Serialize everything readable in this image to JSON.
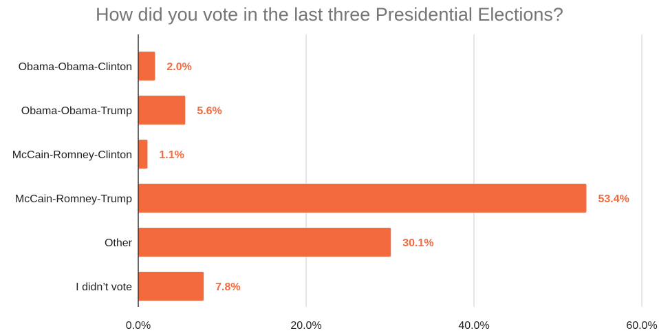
{
  "chart_data": {
    "type": "bar",
    "orientation": "horizontal",
    "title": "How did you vote in the last three Presidential Elections?",
    "categories": [
      "Obama-Obama-Clinton",
      "Obama-Obama-Trump",
      "McCain-Romney-Clinton",
      "McCain-Romney-Trump",
      "Other",
      "I didn’t vote"
    ],
    "values": [
      2.0,
      5.6,
      1.1,
      53.4,
      30.1,
      7.8
    ],
    "data_labels": [
      "2.0%",
      "5.6%",
      "1.1%",
      "53.4%",
      "30.1%",
      "7.8%"
    ],
    "xlim": [
      0,
      60
    ],
    "x_ticks": [
      0,
      20,
      40,
      60
    ],
    "x_tick_labels": [
      "0.0%",
      "20.0%",
      "40.0%",
      "60.0%"
    ],
    "xlabel": "",
    "ylabel": "",
    "grid": true,
    "legend": "none",
    "bar_color": "#F26A3D",
    "label_color": "#F26A3D",
    "grid_color": "#CCCCCC",
    "axis_color": "#333333"
  }
}
